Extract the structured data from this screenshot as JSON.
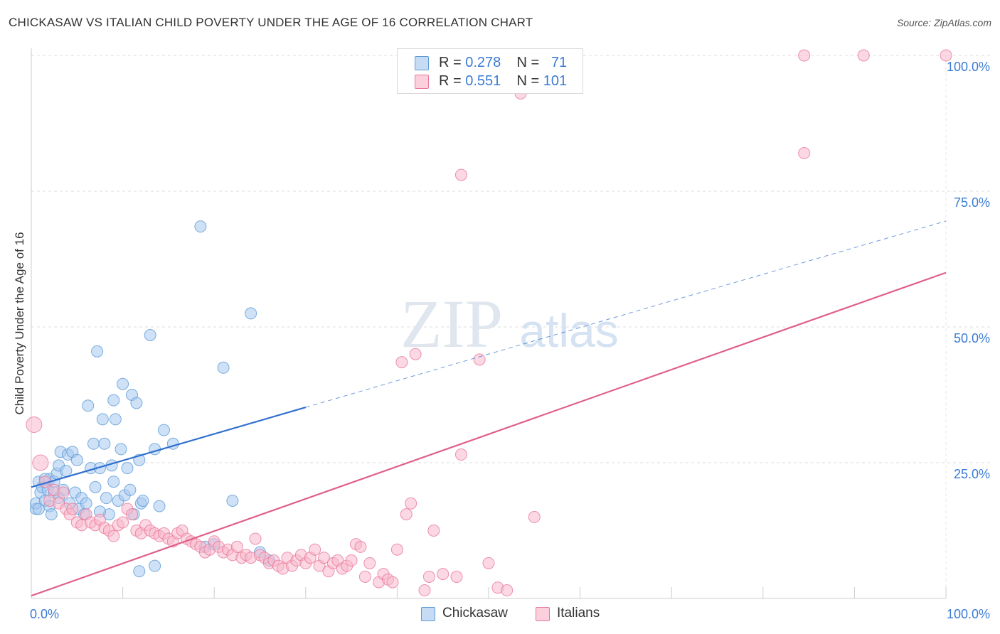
{
  "title": "CHICKASAW VS ITALIAN CHILD POVERTY UNDER THE AGE OF 16 CORRELATION CHART",
  "source": "Source: ZipAtlas.com",
  "watermark": {
    "zip": "ZIP",
    "atlas": "atlas"
  },
  "legend": {
    "rows": [
      {
        "r_label": "R =",
        "r_value": "0.278",
        "n_label": "N =",
        "n_value": "71",
        "color": "#a8c8f0"
      },
      {
        "r_label": "R =",
        "r_value": "0.551",
        "n_label": "N =",
        "n_value": "101",
        "color": "#f8b8cc"
      }
    ]
  },
  "bottom_legend": [
    {
      "label": "Chickasaw",
      "color": "#a8c8f0"
    },
    {
      "label": "Italians",
      "color": "#f8b8cc"
    }
  ],
  "chart_data": {
    "type": "scatter",
    "title": "CHICKASAW VS ITALIAN CHILD POVERTY UNDER THE AGE OF 16 CORRELATION CHART",
    "xlabel": "",
    "ylabel": "Child Poverty Under the Age of 16",
    "xlim": [
      0,
      100
    ],
    "ylim": [
      0,
      100
    ],
    "x_tick_labels": [
      {
        "value": 0,
        "label": "0.0%"
      },
      {
        "value": 100,
        "label": "100.0%"
      }
    ],
    "y_tick_labels": [
      {
        "value": 25,
        "label": "25.0%"
      },
      {
        "value": 50,
        "label": "50.0%"
      },
      {
        "value": 75,
        "label": "75.0%"
      },
      {
        "value": 100,
        "label": "100.0%"
      }
    ],
    "grid": true,
    "series": [
      {
        "name": "Chickasaw",
        "color": "#5b9bd5",
        "fill": "#a8c8f0",
        "trend_color": "#2f6fcf",
        "trend": {
          "solid": [
            [
              0,
              20.5
            ],
            [
              30,
              35.2
            ]
          ],
          "dashed": [
            [
              30,
              35.2
            ],
            [
              100,
              69.5
            ]
          ]
        },
        "points": [
          [
            0.5,
            16.5
          ],
          [
            0.5,
            17.5
          ],
          [
            0.8,
            21.5
          ],
          [
            0.8,
            16.5
          ],
          [
            1.0,
            19.5
          ],
          [
            1.2,
            20.5
          ],
          [
            1.5,
            18.0
          ],
          [
            1.8,
            20.0
          ],
          [
            2.0,
            22.0
          ],
          [
            2.0,
            17.0
          ],
          [
            2.2,
            15.5
          ],
          [
            2.5,
            21.5
          ],
          [
            2.5,
            19.5
          ],
          [
            2.8,
            23.0
          ],
          [
            3.0,
            24.5
          ],
          [
            3.2,
            27.0
          ],
          [
            3.5,
            20.0
          ],
          [
            3.8,
            23.5
          ],
          [
            4.0,
            26.5
          ],
          [
            4.2,
            17.5
          ],
          [
            4.5,
            27.0
          ],
          [
            4.8,
            19.5
          ],
          [
            5.0,
            25.5
          ],
          [
            5.2,
            16.5
          ],
          [
            5.5,
            18.5
          ],
          [
            5.8,
            15.5
          ],
          [
            6.0,
            17.5
          ],
          [
            6.2,
            35.5
          ],
          [
            6.5,
            24.0
          ],
          [
            6.8,
            28.5
          ],
          [
            7.0,
            20.5
          ],
          [
            7.2,
            45.5
          ],
          [
            7.5,
            24.0
          ],
          [
            7.8,
            33.0
          ],
          [
            8.0,
            28.5
          ],
          [
            8.2,
            18.5
          ],
          [
            8.5,
            15.5
          ],
          [
            8.8,
            24.5
          ],
          [
            9.0,
            36.5
          ],
          [
            9.2,
            33.0
          ],
          [
            9.5,
            18.0
          ],
          [
            9.8,
            27.5
          ],
          [
            10.0,
            39.5
          ],
          [
            10.2,
            19.0
          ],
          [
            10.5,
            24.0
          ],
          [
            10.8,
            20.0
          ],
          [
            11.0,
            37.5
          ],
          [
            11.2,
            15.5
          ],
          [
            11.5,
            36.0
          ],
          [
            11.8,
            25.5
          ],
          [
            12.0,
            17.5
          ],
          [
            12.2,
            18.0
          ],
          [
            13.0,
            48.5
          ],
          [
            13.5,
            27.5
          ],
          [
            14.0,
            17.0
          ],
          [
            14.5,
            31.0
          ],
          [
            15.5,
            28.5
          ],
          [
            18.5,
            68.5
          ],
          [
            19.0,
            9.5
          ],
          [
            21.0,
            42.5
          ],
          [
            22.0,
            18.0
          ],
          [
            24.0,
            52.5
          ],
          [
            26.0,
            7.0
          ],
          [
            11.8,
            5.0
          ],
          [
            13.5,
            6.0
          ],
          [
            20.0,
            10.0
          ],
          [
            25.0,
            8.5
          ],
          [
            9.0,
            21.5
          ],
          [
            3.0,
            18.5
          ],
          [
            7.5,
            16.0
          ],
          [
            1.5,
            22.0
          ]
        ]
      },
      {
        "name": "Italians",
        "color": "#e8789a",
        "fill": "#f8b8cc",
        "trend_color": "#e0608a",
        "trend": {
          "solid": [
            [
              0,
              0.5
            ],
            [
              100,
              60.0
            ]
          ]
        },
        "points": [
          [
            0.3,
            32.0
          ],
          [
            1.0,
            25.0
          ],
          [
            1.5,
            21.5
          ],
          [
            2.0,
            18.0
          ],
          [
            2.5,
            20.0
          ],
          [
            3.0,
            17.5
          ],
          [
            3.5,
            19.5
          ],
          [
            3.8,
            16.5
          ],
          [
            4.2,
            15.5
          ],
          [
            4.5,
            16.5
          ],
          [
            5.0,
            14.0
          ],
          [
            5.5,
            13.5
          ],
          [
            6.0,
            15.5
          ],
          [
            6.5,
            14.0
          ],
          [
            7.0,
            13.5
          ],
          [
            7.5,
            14.5
          ],
          [
            8.0,
            13.0
          ],
          [
            8.5,
            12.5
          ],
          [
            9.0,
            11.5
          ],
          [
            9.5,
            13.5
          ],
          [
            10.0,
            14.0
          ],
          [
            10.5,
            16.5
          ],
          [
            11.0,
            15.5
          ],
          [
            11.5,
            12.5
          ],
          [
            12.0,
            12.0
          ],
          [
            12.5,
            13.5
          ],
          [
            13.0,
            12.5
          ],
          [
            13.5,
            12.0
          ],
          [
            14.0,
            11.5
          ],
          [
            14.5,
            12.0
          ],
          [
            15.0,
            11.0
          ],
          [
            15.5,
            10.5
          ],
          [
            16.0,
            12.0
          ],
          [
            16.5,
            12.5
          ],
          [
            17.0,
            11.0
          ],
          [
            17.5,
            10.5
          ],
          [
            18.0,
            10.0
          ],
          [
            18.5,
            9.5
          ],
          [
            19.0,
            8.5
          ],
          [
            19.5,
            9.0
          ],
          [
            20.0,
            10.5
          ],
          [
            20.5,
            9.5
          ],
          [
            21.0,
            8.5
          ],
          [
            21.5,
            9.0
          ],
          [
            22.0,
            8.0
          ],
          [
            22.5,
            9.5
          ],
          [
            23.0,
            7.5
          ],
          [
            23.5,
            8.0
          ],
          [
            24.0,
            7.5
          ],
          [
            24.5,
            11.0
          ],
          [
            25.0,
            8.0
          ],
          [
            25.5,
            7.5
          ],
          [
            26.0,
            6.5
          ],
          [
            26.5,
            7.0
          ],
          [
            27.0,
            6.0
          ],
          [
            27.5,
            5.5
          ],
          [
            28.0,
            7.5
          ],
          [
            28.5,
            6.0
          ],
          [
            29.0,
            7.0
          ],
          [
            29.5,
            8.0
          ],
          [
            30.0,
            6.5
          ],
          [
            30.5,
            7.5
          ],
          [
            31.0,
            9.0
          ],
          [
            31.5,
            6.0
          ],
          [
            32.0,
            7.5
          ],
          [
            32.5,
            5.0
          ],
          [
            33.0,
            6.5
          ],
          [
            33.5,
            7.0
          ],
          [
            34.0,
            5.5
          ],
          [
            34.5,
            6.0
          ],
          [
            35.0,
            7.0
          ],
          [
            35.5,
            10.0
          ],
          [
            36.0,
            9.5
          ],
          [
            36.5,
            4.0
          ],
          [
            37.0,
            6.5
          ],
          [
            38.0,
            3.0
          ],
          [
            38.5,
            4.5
          ],
          [
            39.0,
            3.5
          ],
          [
            39.5,
            3.0
          ],
          [
            40.0,
            9.0
          ],
          [
            41.0,
            15.5
          ],
          [
            41.5,
            17.5
          ],
          [
            43.0,
            1.5
          ],
          [
            43.5,
            4.0
          ],
          [
            44.0,
            12.5
          ],
          [
            45.0,
            4.5
          ],
          [
            46.5,
            4.0
          ],
          [
            47.0,
            26.5
          ],
          [
            49.0,
            44.0
          ],
          [
            50.0,
            6.5
          ],
          [
            51.0,
            2.0
          ],
          [
            52.0,
            1.5
          ],
          [
            55.0,
            15.0
          ],
          [
            42.0,
            45.0
          ],
          [
            40.5,
            43.5
          ],
          [
            47.0,
            78.0
          ],
          [
            53.5,
            93.0
          ],
          [
            84.5,
            82.0
          ],
          [
            84.5,
            100.0
          ],
          [
            91.0,
            100.0
          ],
          [
            100.0,
            100.0
          ]
        ]
      }
    ]
  }
}
